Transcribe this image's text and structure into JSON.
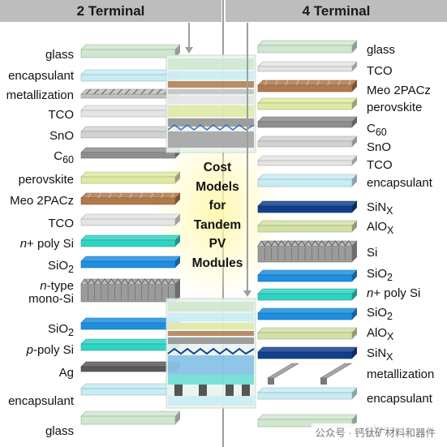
{
  "headers": {
    "left": "2 Terminal",
    "right": "4 Terminal"
  },
  "center_title_lines": [
    "Cost",
    "Models",
    "for",
    "Tandem",
    "PV",
    "Modules"
  ],
  "left_layers": [
    {
      "html": "glass",
      "kind": "glass"
    },
    {
      "html": "encapsulant",
      "kind": "encapsulant"
    },
    {
      "html": "metallization",
      "kind": "metal"
    },
    {
      "html": "TCO",
      "kind": "tco"
    },
    {
      "html": "SnO",
      "kind": "sno"
    },
    {
      "html": "C<sub>60</sub>",
      "kind": "c60"
    },
    {
      "html": "perovskite",
      "kind": "perovskite"
    },
    {
      "html": "Meo 2PACz",
      "kind": "meo"
    },
    {
      "html": "TCO",
      "kind": "tco"
    },
    {
      "html": "<i>n</i>+ poly Si",
      "kind": "cyan"
    },
    {
      "html": "SiO<sub>2</sub>",
      "kind": "blue"
    },
    {
      "html": "<i>n</i>-type<br>mono-Si",
      "kind": "si"
    },
    {
      "html": "SiO<sub>2</sub>",
      "kind": "blue"
    },
    {
      "html": "<i>p</i>-poly Si",
      "kind": "cyan"
    },
    {
      "html": "Ag",
      "kind": "ag"
    },
    {
      "html": "encapsulant",
      "kind": "encapsulant"
    },
    {
      "html": "glass",
      "kind": "glass"
    }
  ],
  "right_layers": [
    {
      "html": "glass",
      "kind": "glass"
    },
    {
      "html": "TCO",
      "kind": "tco"
    },
    {
      "html": "Meo 2PACz",
      "kind": "meo"
    },
    {
      "html": "perovskite",
      "kind": "perovskite"
    },
    {
      "html": "C<sub>60</sub>",
      "kind": "c60"
    },
    {
      "html": "SnO",
      "kind": "sno"
    },
    {
      "html": "TCO",
      "kind": "tco"
    },
    {
      "html": "encapsulant",
      "kind": "encapsulant"
    },
    {
      "html": "SiN<sub>X</sub>",
      "kind": "navy"
    },
    {
      "html": "AlO<sub>X</sub>",
      "kind": "alox"
    },
    {
      "html": "Si",
      "kind": "si"
    },
    {
      "html": "SiO<sub>2</sub>",
      "kind": "blue"
    },
    {
      "html": "<i>n</i>+ poly Si",
      "kind": "cyan"
    },
    {
      "html": "SiO<sub>2</sub>",
      "kind": "blue"
    },
    {
      "html": "AlO<sub>X</sub>",
      "kind": "alox"
    },
    {
      "html": "SiN<sub>X</sub>",
      "kind": "navy"
    },
    {
      "html": "metallization",
      "kind": "metal"
    },
    {
      "html": "encapsulant",
      "kind": "encapsulant"
    },
    {
      "html": "glass",
      "kind": "glass"
    }
  ],
  "palette": {
    "glass": "#cfe6cf",
    "encapsulant": "#c7ecf4",
    "tco": "#e4e4e4",
    "sno": "#d2d2d2",
    "c60": "#8e8e8e",
    "perovskite": "#dfe9a1",
    "meo": "#b07a4c",
    "cyan": "#2fd3c4",
    "blue": "#1e8fe0",
    "navy": "#123f8c",
    "alox": "#d2e0a6",
    "si": "#9b9b9b",
    "ag": "#5a5a5a",
    "metal": "#bfbfbf"
  },
  "watermark": "公众号 · 钙钛矿材料和器件"
}
